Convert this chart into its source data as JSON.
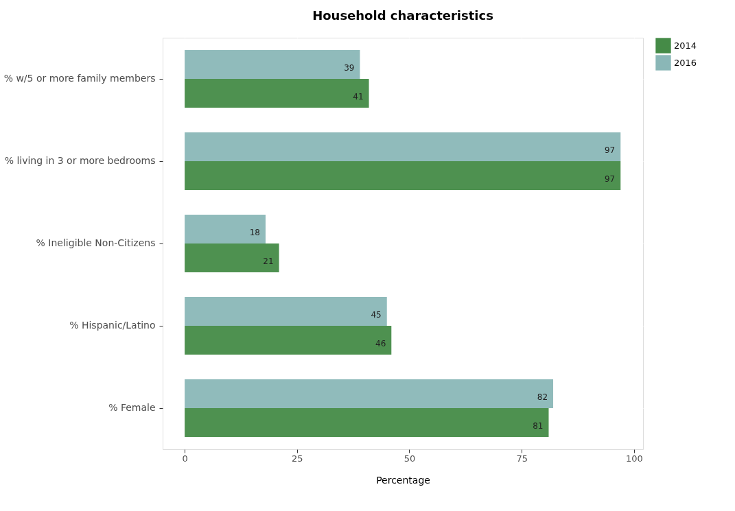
{
  "chart_data": {
    "type": "bar",
    "orientation": "horizontal",
    "title": "Household characteristics",
    "xlabel": "Percentage",
    "categories": [
      "% w/5 or more family members",
      "% living in 3 or more bedrooms",
      "% Ineligible Non-Citizens",
      "% Hispanic/Latino",
      "% Female"
    ],
    "series": [
      {
        "name": "2014",
        "color": "#458b47",
        "values": [
          41,
          97,
          21,
          46,
          81
        ]
      },
      {
        "name": "2016",
        "color": "#8ab7b7",
        "values": [
          39,
          97,
          18,
          45,
          82
        ]
      }
    ],
    "xlim": [
      -4.9,
      102
    ],
    "xticks": [
      0,
      25,
      50,
      75,
      100
    ],
    "grid": true,
    "legend": "right",
    "data_labels": true
  }
}
